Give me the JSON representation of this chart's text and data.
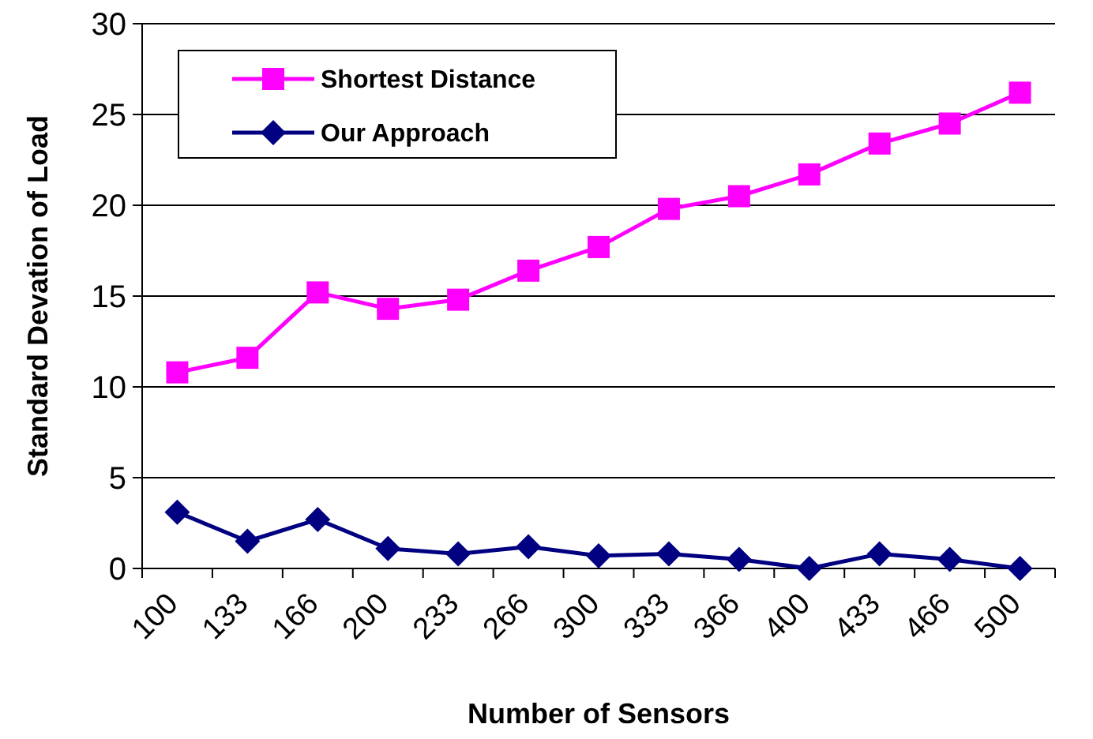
{
  "chart_data": {
    "type": "line",
    "xlabel": "Number of Sensors",
    "ylabel": "Standard Devation of Load",
    "categories": [
      "100",
      "133",
      "166",
      "200",
      "233",
      "266",
      "300",
      "333",
      "366",
      "400",
      "433",
      "466",
      "500"
    ],
    "series": [
      {
        "name": "Shortest Distance",
        "color": "#ff00ff",
        "marker": "square",
        "values": [
          10.8,
          11.6,
          15.2,
          14.3,
          14.8,
          16.4,
          17.7,
          19.8,
          20.5,
          21.7,
          23.4,
          24.5,
          26.2
        ]
      },
      {
        "name": "Our Approach",
        "color": "#000080",
        "marker": "diamond",
        "values": [
          3.1,
          1.5,
          2.7,
          1.1,
          0.8,
          1.2,
          0.7,
          0.8,
          0.5,
          0.0,
          0.8,
          0.5,
          0.0
        ]
      }
    ],
    "ylim": [
      0,
      30
    ],
    "yticks": [
      0,
      5,
      10,
      15,
      20,
      25,
      30
    ],
    "grid": "y",
    "legend": "top left",
    "line_style": "solid"
  }
}
